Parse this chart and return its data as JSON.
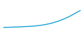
{
  "x": [
    0,
    1,
    2,
    3,
    4,
    5,
    6,
    7,
    8,
    9,
    10,
    11,
    12,
    13,
    14,
    15,
    16,
    17,
    18,
    19,
    20
  ],
  "y": [
    1,
    1.1,
    1.2,
    1.35,
    1.5,
    1.7,
    1.9,
    2.1,
    2.4,
    2.8,
    3.3,
    4.0,
    4.8,
    5.8,
    7.0,
    8.4,
    10.0,
    11.8,
    13.8,
    16.0,
    18.0
  ],
  "line_color": "#18a0d4",
  "line_width": 1.0,
  "background_color": "#ffffff",
  "xlim_min": -0.5,
  "xlim_max": 20.5,
  "ylim_min": -2,
  "ylim_max": 28
}
